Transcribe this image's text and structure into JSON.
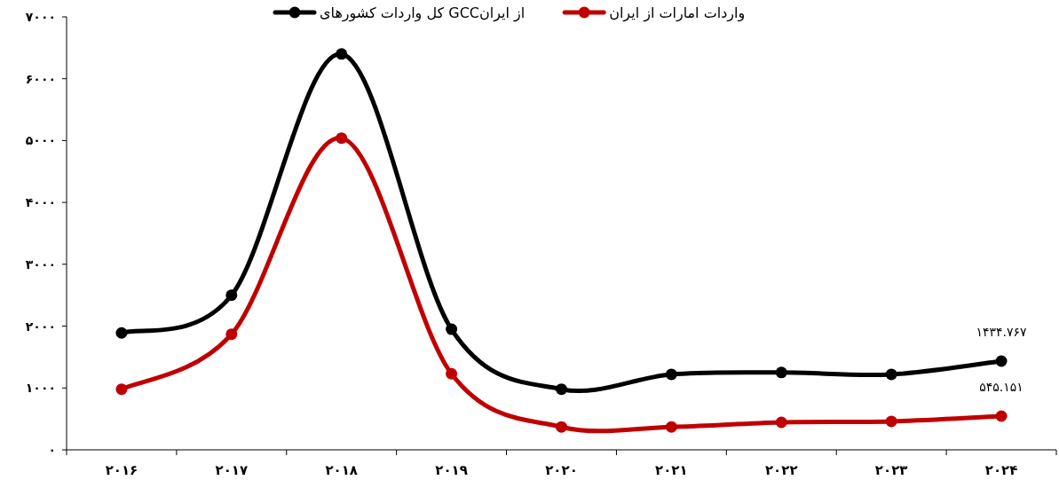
{
  "chart_data": {
    "type": "line",
    "categories": [
      "۲۰۱۶",
      "۲۰۱۷",
      "۲۰۱۸",
      "۲۰۱۹",
      "۲۰۲۰",
      "۲۰۲۱",
      "۲۰۲۲",
      "۲۰۲۳",
      "۲۰۲۴"
    ],
    "series": [
      {
        "name": "کل واردات کشورهای GCCاز ایران",
        "color": "#000000",
        "values": [
          1890,
          2500,
          6400,
          1950,
          980,
          1220,
          1250,
          1220,
          1434.767
        ],
        "value_labels": [
          null,
          null,
          null,
          null,
          null,
          null,
          null,
          null,
          "۱۴۳۴.۷۶۷"
        ]
      },
      {
        "name": "واردات امارات از ایران",
        "color": "#c00000",
        "values": [
          980,
          1870,
          5040,
          1230,
          370,
          370,
          445,
          460,
          545.151
        ],
        "value_labels": [
          null,
          null,
          null,
          null,
          null,
          null,
          null,
          null,
          "۵۴۵.۱۵۱"
        ]
      }
    ],
    "ylim": [
      0,
      7000
    ],
    "yticks": [
      {
        "value": 0,
        "label": "۰"
      },
      {
        "value": 1000,
        "label": "۱۰۰۰"
      },
      {
        "value": 2000,
        "label": "۲۰۰۰"
      },
      {
        "value": 3000,
        "label": "۳۰۰۰"
      },
      {
        "value": 4000,
        "label": "۴۰۰۰"
      },
      {
        "value": 5000,
        "label": "۵۰۰۰"
      },
      {
        "value": 6000,
        "label": "۶۰۰۰"
      },
      {
        "value": 7000,
        "label": "۷۰۰۰"
      }
    ],
    "marker": "circle",
    "legend": "top",
    "grid": false
  }
}
